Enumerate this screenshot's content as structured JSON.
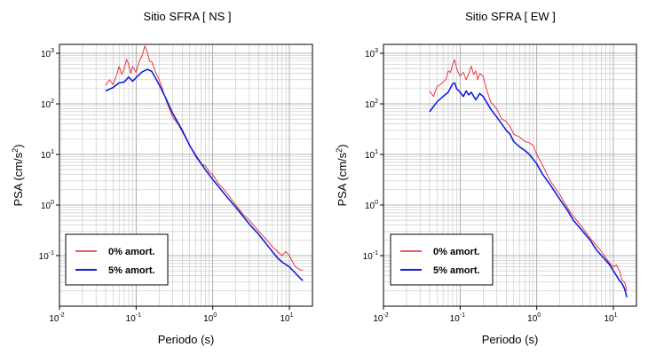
{
  "chart_data": [
    {
      "type": "line",
      "title": "Sitio SFRA [ NS ]",
      "xlabel": "Periodo (s)",
      "ylabel": "PSA (cm/s",
      "ylabel_sup": "2",
      "ylabel_close": ")",
      "xscale": "log",
      "yscale": "log",
      "xlim": [
        0.01,
        20
      ],
      "ylim": [
        0.01,
        1500
      ],
      "grid": true,
      "legend_position": "bottom-left",
      "x_ticks": [
        {
          "base": "10",
          "exp": "-2"
        },
        {
          "base": "10",
          "exp": "-1"
        },
        {
          "base": "10",
          "exp": "0"
        },
        {
          "base": "10",
          "exp": "1"
        }
      ],
      "y_ticks": [
        {
          "base": "10",
          "exp": "-1"
        },
        {
          "base": "10",
          "exp": "0"
        },
        {
          "base": "10",
          "exp": "1"
        },
        {
          "base": "10",
          "exp": "2"
        },
        {
          "base": "10",
          "exp": "3"
        }
      ],
      "series": [
        {
          "name": "0% amort.",
          "color": "#e8262a",
          "points": [
            [
              0.04,
              230
            ],
            [
              0.045,
              300
            ],
            [
              0.05,
              240
            ],
            [
              0.055,
              350
            ],
            [
              0.06,
              550
            ],
            [
              0.065,
              380
            ],
            [
              0.07,
              500
            ],
            [
              0.075,
              760
            ],
            [
              0.08,
              600
            ],
            [
              0.085,
              400
            ],
            [
              0.09,
              550
            ],
            [
              0.1,
              420
            ],
            [
              0.11,
              700
            ],
            [
              0.12,
              900
            ],
            [
              0.13,
              1400
            ],
            [
              0.14,
              1050
            ],
            [
              0.15,
              700
            ],
            [
              0.16,
              680
            ],
            [
              0.18,
              420
            ],
            [
              0.2,
              300
            ],
            [
              0.22,
              200
            ],
            [
              0.25,
              110
            ],
            [
              0.3,
              55
            ],
            [
              0.35,
              40
            ],
            [
              0.4,
              28
            ],
            [
              0.5,
              15
            ],
            [
              0.6,
              9
            ],
            [
              0.7,
              6.5
            ],
            [
              0.8,
              6
            ],
            [
              0.9,
              4.5
            ],
            [
              1.0,
              4
            ],
            [
              1.2,
              2.6
            ],
            [
              1.5,
              1.8
            ],
            [
              2.0,
              1.0
            ],
            [
              2.5,
              0.65
            ],
            [
              3.0,
              0.5
            ],
            [
              4.0,
              0.3
            ],
            [
              5.0,
              0.21
            ],
            [
              6.0,
              0.15
            ],
            [
              7.0,
              0.12
            ],
            [
              8.0,
              0.1
            ],
            [
              9.0,
              0.12
            ],
            [
              10,
              0.1
            ],
            [
              11,
              0.075
            ],
            [
              12,
              0.06
            ],
            [
              14,
              0.052
            ],
            [
              15,
              0.052
            ]
          ]
        },
        {
          "name": "5% amort.",
          "color": "#1020d8",
          "points": [
            [
              0.04,
              180
            ],
            [
              0.05,
              210
            ],
            [
              0.06,
              260
            ],
            [
              0.07,
              270
            ],
            [
              0.08,
              340
            ],
            [
              0.09,
              280
            ],
            [
              0.1,
              330
            ],
            [
              0.12,
              430
            ],
            [
              0.14,
              480
            ],
            [
              0.16,
              440
            ],
            [
              0.18,
              320
            ],
            [
              0.2,
              240
            ],
            [
              0.25,
              120
            ],
            [
              0.3,
              65
            ],
            [
              0.4,
              30
            ],
            [
              0.5,
              15
            ],
            [
              0.6,
              9.5
            ],
            [
              0.8,
              5
            ],
            [
              1.0,
              3.2
            ],
            [
              1.5,
              1.5
            ],
            [
              2.0,
              0.9
            ],
            [
              3.0,
              0.42
            ],
            [
              4.0,
              0.26
            ],
            [
              5.0,
              0.17
            ],
            [
              6.0,
              0.12
            ],
            [
              7.0,
              0.09
            ],
            [
              8.0,
              0.075
            ],
            [
              10,
              0.06
            ],
            [
              12,
              0.045
            ],
            [
              14,
              0.035
            ],
            [
              15,
              0.032
            ]
          ]
        }
      ]
    },
    {
      "type": "line",
      "title": "Sitio SFRA [ EW ]",
      "xlabel": "Periodo (s)",
      "ylabel": "PSA (cm/s",
      "ylabel_sup": "2",
      "ylabel_close": ")",
      "xscale": "log",
      "yscale": "log",
      "xlim": [
        0.01,
        20
      ],
      "ylim": [
        0.01,
        1500
      ],
      "grid": true,
      "legend_position": "bottom-left",
      "x_ticks": [
        {
          "base": "10",
          "exp": "-2"
        },
        {
          "base": "10",
          "exp": "-1"
        },
        {
          "base": "10",
          "exp": "0"
        },
        {
          "base": "10",
          "exp": "1"
        }
      ],
      "y_ticks": [
        {
          "base": "10",
          "exp": "-1"
        },
        {
          "base": "10",
          "exp": "0"
        },
        {
          "base": "10",
          "exp": "1"
        },
        {
          "base": "10",
          "exp": "2"
        },
        {
          "base": "10",
          "exp": "3"
        }
      ],
      "series": [
        {
          "name": "0% amort.",
          "color": "#e8262a",
          "points": [
            [
              0.04,
              180
            ],
            [
              0.045,
              140
            ],
            [
              0.05,
              220
            ],
            [
              0.055,
              240
            ],
            [
              0.06,
              270
            ],
            [
              0.065,
              300
            ],
            [
              0.07,
              450
            ],
            [
              0.075,
              420
            ],
            [
              0.08,
              600
            ],
            [
              0.085,
              750
            ],
            [
              0.09,
              500
            ],
            [
              0.1,
              350
            ],
            [
              0.11,
              420
            ],
            [
              0.12,
              300
            ],
            [
              0.13,
              400
            ],
            [
              0.14,
              560
            ],
            [
              0.15,
              380
            ],
            [
              0.16,
              450
            ],
            [
              0.17,
              300
            ],
            [
              0.18,
              400
            ],
            [
              0.2,
              350
            ],
            [
              0.22,
              200
            ],
            [
              0.25,
              110
            ],
            [
              0.28,
              90
            ],
            [
              0.3,
              80
            ],
            [
              0.35,
              50
            ],
            [
              0.4,
              45
            ],
            [
              0.45,
              35
            ],
            [
              0.5,
              25
            ],
            [
              0.6,
              22
            ],
            [
              0.7,
              18
            ],
            [
              0.8,
              17
            ],
            [
              0.9,
              15
            ],
            [
              1.0,
              10
            ],
            [
              1.2,
              6
            ],
            [
              1.5,
              3
            ],
            [
              2.0,
              1.6
            ],
            [
              2.5,
              0.9
            ],
            [
              3.0,
              0.6
            ],
            [
              4.0,
              0.35
            ],
            [
              5.0,
              0.22
            ],
            [
              6.0,
              0.16
            ],
            [
              7.0,
              0.12
            ],
            [
              8.0,
              0.09
            ],
            [
              9.0,
              0.07
            ],
            [
              10,
              0.06
            ],
            [
              11,
              0.065
            ],
            [
              12,
              0.05
            ],
            [
              13,
              0.032
            ],
            [
              14,
              0.03
            ],
            [
              15,
              0.02
            ]
          ]
        },
        {
          "name": "5% amort.",
          "color": "#1020d8",
          "points": [
            [
              0.04,
              70
            ],
            [
              0.05,
              110
            ],
            [
              0.06,
              140
            ],
            [
              0.07,
              170
            ],
            [
              0.08,
              250
            ],
            [
              0.085,
              260
            ],
            [
              0.09,
              200
            ],
            [
              0.1,
              170
            ],
            [
              0.11,
              140
            ],
            [
              0.12,
              180
            ],
            [
              0.13,
              150
            ],
            [
              0.14,
              170
            ],
            [
              0.16,
              120
            ],
            [
              0.18,
              160
            ],
            [
              0.2,
              140
            ],
            [
              0.22,
              110
            ],
            [
              0.25,
              80
            ],
            [
              0.3,
              55
            ],
            [
              0.35,
              40
            ],
            [
              0.4,
              30
            ],
            [
              0.45,
              25
            ],
            [
              0.5,
              18
            ],
            [
              0.6,
              14
            ],
            [
              0.7,
              12
            ],
            [
              0.8,
              10
            ],
            [
              0.9,
              8
            ],
            [
              1.0,
              6.5
            ],
            [
              1.2,
              4
            ],
            [
              1.5,
              2.5
            ],
            [
              2.0,
              1.3
            ],
            [
              2.5,
              0.8
            ],
            [
              3.0,
              0.5
            ],
            [
              4.0,
              0.3
            ],
            [
              5.0,
              0.2
            ],
            [
              6.0,
              0.13
            ],
            [
              7.0,
              0.1
            ],
            [
              8.0,
              0.08
            ],
            [
              9.0,
              0.065
            ],
            [
              10,
              0.05
            ],
            [
              11,
              0.04
            ],
            [
              12,
              0.032
            ],
            [
              13,
              0.028
            ],
            [
              14,
              0.022
            ],
            [
              15,
              0.015
            ]
          ]
        }
      ]
    }
  ]
}
